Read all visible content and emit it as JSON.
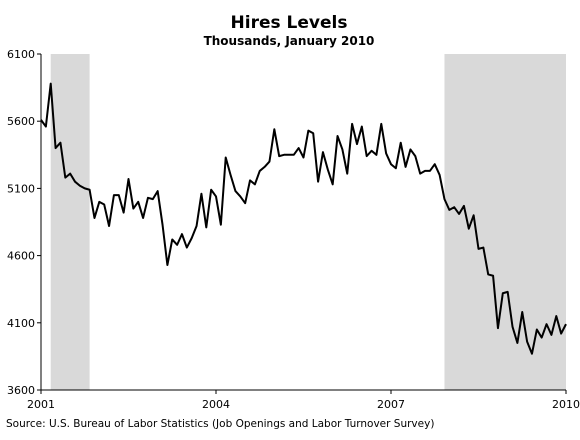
{
  "chart_data": {
    "type": "line",
    "title": "Hires Levels",
    "subtitle": "Thousands, January 2010",
    "xlabel": "",
    "ylabel": "",
    "ylim": [
      3600,
      6100
    ],
    "yticks": [
      "3600",
      "4100",
      "4600",
      "5100",
      "5600",
      "6100"
    ],
    "xlim": [
      "2001-01",
      "2010-01"
    ],
    "xticks": [
      {
        "label": "2001",
        "x": "2001-01"
      },
      {
        "label": "2004",
        "x": "2004-01"
      },
      {
        "label": "2007",
        "x": "2007-01"
      },
      {
        "label": "2010",
        "x": "2010-01"
      }
    ],
    "recessions": [
      {
        "start": "2001-03",
        "end": "2001-11"
      },
      {
        "start": "2007-12",
        "end": "2010-01"
      }
    ],
    "grid": false,
    "series": [
      {
        "name": "",
        "color": "#000000",
        "values": [
          5610,
          5560,
          5880,
          5400,
          5440,
          5180,
          5210,
          5150,
          5120,
          5100,
          5090,
          4880,
          5000,
          4980,
          4820,
          5050,
          5050,
          4920,
          5170,
          4950,
          5000,
          4880,
          5030,
          5020,
          5080,
          4830,
          4530,
          4720,
          4680,
          4760,
          4660,
          4730,
          4820,
          5060,
          4810,
          5090,
          5040,
          4830,
          5330,
          5200,
          5080,
          5040,
          4990,
          5160,
          5130,
          5230,
          5260,
          5300,
          5540,
          5340,
          5350,
          5350,
          5350,
          5400,
          5330,
          5530,
          5510,
          5150,
          5370,
          5240,
          5130,
          5490,
          5390,
          5210,
          5580,
          5430,
          5560,
          5340,
          5380,
          5350,
          5580,
          5360,
          5280,
          5250,
          5440,
          5260,
          5390,
          5340,
          5210,
          5230,
          5230,
          5280,
          5200,
          5020,
          4940,
          4960,
          4910,
          4970,
          4800,
          4900,
          4650,
          4660,
          4460,
          4450,
          4060,
          4320,
          4330,
          4070,
          3950,
          4180,
          3960,
          3870,
          4050,
          3990,
          4090,
          4010,
          4150,
          4020,
          4090
        ]
      }
    ]
  },
  "source_text": "Source: U.S. Bureau of Labor Statistics (Job Openings and Labor Turnover Survey)"
}
